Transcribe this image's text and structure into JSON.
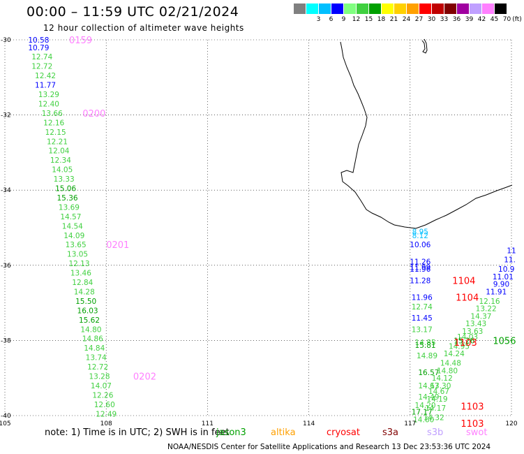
{
  "header": {
    "title": "00:00 – 11:59 UTC 02/21/2024",
    "subtitle": "12 hour collection of altimeter wave heights"
  },
  "legend": {
    "unit": "(ft)",
    "colors": [
      "#808080",
      "#00ffff",
      "#00bfff",
      "#0000ff",
      "#80ff80",
      "#40d040",
      "#00a000",
      "#ffff00",
      "#ffd000",
      "#ffa000",
      "#ff0000",
      "#c00000",
      "#800000",
      "#a000a0",
      "#c0a0ff",
      "#ff80ff",
      "#000000"
    ],
    "labels": [
      "",
      "3",
      "6",
      "9",
      "12",
      "15",
      "18",
      "21",
      "24",
      "27",
      "30",
      "33",
      "36",
      "39",
      "42",
      "45",
      "70"
    ]
  },
  "axes": {
    "lat_labels": [
      "-30",
      "-32",
      "-34",
      "-36",
      "-38",
      "-40"
    ],
    "lon_labels": [
      "105",
      "108",
      "111",
      "114",
      "117",
      "120"
    ]
  },
  "tracks": [
    {
      "color": "#40d040",
      "points": [
        {
          "v": "10.58",
          "lat": -30.0,
          "lon": 106.0,
          "c": "#0000ff"
        },
        {
          "v": "10.79",
          "lat": -30.2,
          "lon": 106.0,
          "c": "#0000ff"
        },
        {
          "v": "12.74",
          "lat": -30.45,
          "lon": 106.1
        },
        {
          "v": "12.72",
          "lat": -30.7,
          "lon": 106.1
        },
        {
          "v": "12.42",
          "lat": -30.95,
          "lon": 106.2
        },
        {
          "v": "11.77",
          "lat": -31.2,
          "lon": 106.2,
          "c": "#0000ff"
        },
        {
          "v": "13.29",
          "lat": -31.45,
          "lon": 106.3
        },
        {
          "v": "12.40",
          "lat": -31.7,
          "lon": 106.3
        },
        {
          "v": "13.66",
          "lat": -31.95,
          "lon": 106.4
        },
        {
          "v": "12.16",
          "lat": -32.2,
          "lon": 106.45
        },
        {
          "v": "12.15",
          "lat": -32.45,
          "lon": 106.5
        },
        {
          "v": "12.21",
          "lat": -32.7,
          "lon": 106.55
        },
        {
          "v": "12.04",
          "lat": -32.95,
          "lon": 106.6
        },
        {
          "v": "12.34",
          "lat": -33.2,
          "lon": 106.65
        },
        {
          "v": "14.05",
          "lat": -33.45,
          "lon": 106.7
        },
        {
          "v": "13.33",
          "lat": -33.7,
          "lon": 106.75
        },
        {
          "v": "15.06",
          "lat": -33.95,
          "lon": 106.8,
          "c": "#00a000"
        },
        {
          "v": "15.36",
          "lat": -34.2,
          "lon": 106.85,
          "c": "#00a000"
        },
        {
          "v": "13.69",
          "lat": -34.45,
          "lon": 106.9
        },
        {
          "v": "14.57",
          "lat": -34.7,
          "lon": 106.95
        },
        {
          "v": "14.54",
          "lat": -34.95,
          "lon": 107.0
        },
        {
          "v": "14.09",
          "lat": -35.2,
          "lon": 107.05
        },
        {
          "v": "13.65",
          "lat": -35.45,
          "lon": 107.1
        },
        {
          "v": "13.05",
          "lat": -35.7,
          "lon": 107.15
        },
        {
          "v": "12.13",
          "lat": -35.95,
          "lon": 107.2
        },
        {
          "v": "13.46",
          "lat": -36.2,
          "lon": 107.25
        },
        {
          "v": "12.84",
          "lat": -36.45,
          "lon": 107.3
        },
        {
          "v": "14.28",
          "lat": -36.7,
          "lon": 107.35
        },
        {
          "v": "15.50",
          "lat": -36.95,
          "lon": 107.4,
          "c": "#00a000"
        },
        {
          "v": "16.03",
          "lat": -37.2,
          "lon": 107.45,
          "c": "#00a000"
        },
        {
          "v": "15.62",
          "lat": -37.45,
          "lon": 107.5,
          "c": "#00a000"
        },
        {
          "v": "14.80",
          "lat": -37.7,
          "lon": 107.55
        },
        {
          "v": "14.86",
          "lat": -37.95,
          "lon": 107.6
        },
        {
          "v": "14.84",
          "lat": -38.2,
          "lon": 107.65
        },
        {
          "v": "13.74",
          "lat": -38.45,
          "lon": 107.7
        },
        {
          "v": "12.72",
          "lat": -38.7,
          "lon": 107.75
        },
        {
          "v": "13.28",
          "lat": -38.95,
          "lon": 107.8
        },
        {
          "v": "14.07",
          "lat": -39.2,
          "lon": 107.85
        },
        {
          "v": "12.26",
          "lat": -39.45,
          "lon": 107.9
        },
        {
          "v": "12.60",
          "lat": -39.7,
          "lon": 107.95
        },
        {
          "v": "12.49",
          "lat": -39.95,
          "lon": 108.0
        }
      ]
    },
    {
      "color": "#40d040",
      "points": [
        {
          "v": "8.95",
          "lat": -35.1,
          "lon": 117.3,
          "c": "#00bfff"
        },
        {
          "v": "8.12",
          "lat": -35.2,
          "lon": 117.3,
          "c": "#00bfff"
        },
        {
          "v": "10.06",
          "lat": -35.45,
          "lon": 117.3,
          "c": "#0000ff"
        },
        {
          "v": "11.26",
          "lat": -35.9,
          "lon": 117.3,
          "c": "#0000ff"
        },
        {
          "v": "11.99",
          "lat": -36.05,
          "lon": 117.3,
          "c": "#0000ff"
        },
        {
          "v": "11.96",
          "lat": -36.1,
          "lon": 117.3,
          "c": "#0000ff"
        },
        {
          "v": "11.28",
          "lat": -36.4,
          "lon": 117.3,
          "c": "#0000ff"
        },
        {
          "v": "11.96",
          "lat": -36.85,
          "lon": 117.35,
          "c": "#0000ff"
        },
        {
          "v": "12.74",
          "lat": -37.1,
          "lon": 117.35
        },
        {
          "v": "11.45",
          "lat": -37.4,
          "lon": 117.35,
          "c": "#0000ff"
        },
        {
          "v": "13.17",
          "lat": -37.7,
          "lon": 117.35
        },
        {
          "v": "14.85",
          "lat": -38.05,
          "lon": 117.45
        },
        {
          "v": "15.81",
          "lat": -38.12,
          "lon": 117.45,
          "c": "#00a000"
        },
        {
          "v": "14.89",
          "lat": -38.4,
          "lon": 117.5
        },
        {
          "v": "16.57",
          "lat": -38.85,
          "lon": 117.55,
          "c": "#00a000"
        },
        {
          "v": "14.67",
          "lat": -39.2,
          "lon": 117.55
        },
        {
          "v": "14.49",
          "lat": -39.5,
          "lon": 117.55
        },
        {
          "v": "14.20",
          "lat": -39.72,
          "lon": 117.45
        },
        {
          "v": "17.17",
          "lat": -39.9,
          "lon": 117.35,
          "c": "#00a000"
        },
        {
          "v": "14.60",
          "lat": -40.1,
          "lon": 117.4
        }
      ]
    },
    {
      "color": "#40d040",
      "points": [
        {
          "v": "11",
          "lat": -35.6,
          "lon": 120.0,
          "c": "#0000ff"
        },
        {
          "v": "11.",
          "lat": -35.85,
          "lon": 119.95,
          "c": "#0000ff"
        },
        {
          "v": "10.9",
          "lat": -36.1,
          "lon": 119.85,
          "c": "#0000ff"
        },
        {
          "v": "11.01",
          "lat": -36.3,
          "lon": 119.75,
          "c": "#0000ff"
        },
        {
          "v": "9.90",
          "lat": -36.5,
          "lon": 119.7,
          "c": "#0000ff"
        },
        {
          "v": "11.91",
          "lat": -36.7,
          "lon": 119.55,
          "c": "#0000ff"
        },
        {
          "v": "12.16",
          "lat": -36.95,
          "lon": 119.35
        },
        {
          "v": "13.22",
          "lat": -37.15,
          "lon": 119.25
        },
        {
          "v": "14.37",
          "lat": -37.35,
          "lon": 119.1
        },
        {
          "v": "13.43",
          "lat": -37.55,
          "lon": 118.95
        },
        {
          "v": "13.63",
          "lat": -37.75,
          "lon": 118.85
        },
        {
          "v": "14.03",
          "lat": -37.9,
          "lon": 118.7
        },
        {
          "v": "15.26",
          "lat": -38.0,
          "lon": 118.6,
          "c": "#00a000"
        },
        {
          "v": "14.95",
          "lat": -38.15,
          "lon": 118.45
        },
        {
          "v": "14.24",
          "lat": -38.35,
          "lon": 118.3
        },
        {
          "v": "14.48",
          "lat": -38.6,
          "lon": 118.2
        },
        {
          "v": "14.80",
          "lat": -38.8,
          "lon": 118.1
        },
        {
          "v": "14.12",
          "lat": -39.0,
          "lon": 117.95
        },
        {
          "v": "13.30",
          "lat": -39.2,
          "lon": 117.9
        },
        {
          "v": "14.67",
          "lat": -39.35,
          "lon": 117.85
        },
        {
          "v": "14.19",
          "lat": -39.55,
          "lon": 117.8
        },
        {
          "v": "14.17",
          "lat": -39.8,
          "lon": 117.75
        },
        {
          "v": "14.32",
          "lat": -40.05,
          "lon": 117.7
        }
      ]
    }
  ],
  "time_labels": [
    {
      "t": "0159",
      "lat": -30.0,
      "lon": 106.9,
      "c": "#ff80ff"
    },
    {
      "t": "0200",
      "lat": -31.95,
      "lon": 107.3,
      "c": "#ff80ff"
    },
    {
      "t": "0201",
      "lat": -35.45,
      "lon": 108.0,
      "c": "#ff80ff"
    },
    {
      "t": "0202",
      "lat": -38.95,
      "lon": 108.8,
      "c": "#ff80ff"
    },
    {
      "t": "1104",
      "lat": -36.4,
      "lon": 118.25,
      "c": "#ff0000"
    },
    {
      "t": "1104",
      "lat": -36.85,
      "lon": 118.35,
      "c": "#ff0000"
    },
    {
      "t": "1103",
      "lat": -38.05,
      "lon": 118.3,
      "c": "#ff0000"
    },
    {
      "t": "1056",
      "lat": -38.0,
      "lon": 119.45,
      "c": "#00a000"
    },
    {
      "t": "1103",
      "lat": -39.75,
      "lon": 118.5,
      "c": "#ff0000"
    },
    {
      "t": "1103",
      "lat": -40.2,
      "lon": 118.5,
      "c": "#ff0000"
    }
  ],
  "note": "note:  1) Time is in UTC; 2) SWH is in feet",
  "satellites": [
    {
      "name": "jason3",
      "color": "#00a000"
    },
    {
      "name": "altika",
      "color": "#ffa000"
    },
    {
      "name": "cryosat",
      "color": "#ff0000"
    },
    {
      "name": "s3a",
      "color": "#800000"
    },
    {
      "name": "s3b",
      "color": "#c0a0ff"
    },
    {
      "name": "swot",
      "color": "#ff80ff"
    }
  ],
  "footer": "NOAA/NESDIS Center for Satellite Applications and Research    13 Dec 23:53:36 UTC 2024"
}
